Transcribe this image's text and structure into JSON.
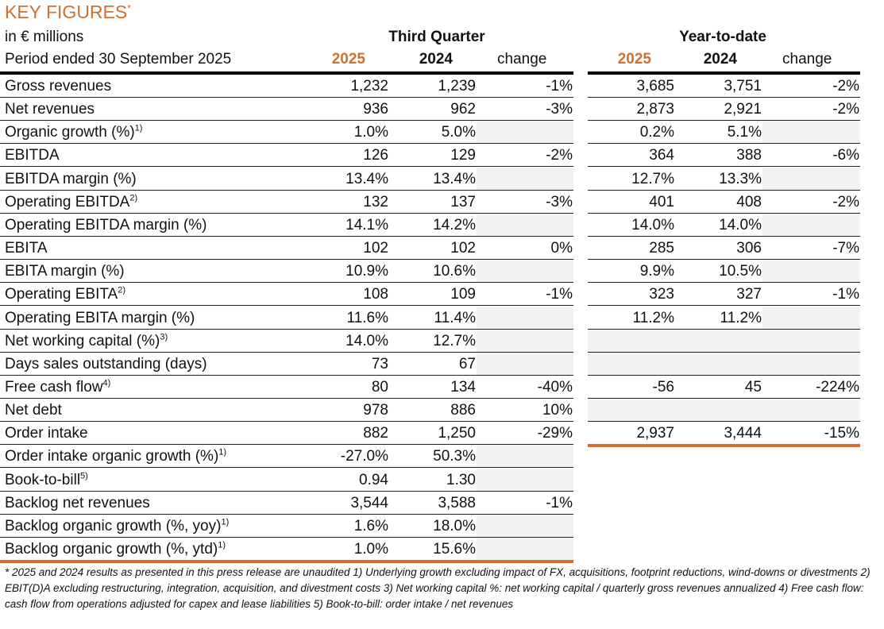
{
  "title": "KEY FIGURES",
  "title_sup": "*",
  "units": "in € millions",
  "period": "Period ended 30 September 2025",
  "third_quarter": {
    "heading": "Third Quarter",
    "col_2025": "2025",
    "col_2024": "2024",
    "col_change": "change"
  },
  "ytd": {
    "heading": "Year-to-date",
    "col_2025": "2025",
    "col_2024": "2024",
    "col_change": "change"
  },
  "colors": {
    "accent": "#d0702e",
    "shade": "#f2f2f2"
  },
  "rows": [
    {
      "label": "Gross revenues",
      "sup": "",
      "q": [
        "1,232",
        "1,239",
        "-1%"
      ],
      "y": [
        "3,685",
        "3,751",
        "-2%"
      ]
    },
    {
      "label": "Net revenues",
      "sup": "",
      "q": [
        "936",
        "962",
        "-3%"
      ],
      "y": [
        "2,873",
        "2,921",
        "-2%"
      ]
    },
    {
      "label": "Organic growth (%)",
      "sup": "1)",
      "q": [
        "1.0%",
        "5.0%",
        ""
      ],
      "y": [
        "0.2%",
        "5.1%",
        ""
      ]
    },
    {
      "label": "EBITDA",
      "sup": "",
      "q": [
        "126",
        "129",
        "-2%"
      ],
      "y": [
        "364",
        "388",
        "-6%"
      ]
    },
    {
      "label": "EBITDA margin (%)",
      "sup": "",
      "q": [
        "13.4%",
        "13.4%",
        ""
      ],
      "y": [
        "12.7%",
        "13.3%",
        ""
      ]
    },
    {
      "label": "Operating EBITDA",
      "sup": "2)",
      "q": [
        "132",
        "137",
        "-3%"
      ],
      "y": [
        "401",
        "408",
        "-2%"
      ]
    },
    {
      "label": "Operating EBITDA margin (%)",
      "sup": "",
      "q": [
        "14.1%",
        "14.2%",
        ""
      ],
      "y": [
        "14.0%",
        "14.0%",
        ""
      ]
    },
    {
      "label": "EBITA",
      "sup": "",
      "q": [
        "102",
        "102",
        "0%"
      ],
      "y": [
        "285",
        "306",
        "-7%"
      ]
    },
    {
      "label": "EBITA margin (%)",
      "sup": "",
      "q": [
        "10.9%",
        "10.6%",
        ""
      ],
      "y": [
        "9.9%",
        "10.5%",
        ""
      ]
    },
    {
      "label": "Operating EBITA",
      "sup": "2)",
      "q": [
        "108",
        "109",
        "-1%"
      ],
      "y": [
        "323",
        "327",
        "-1%"
      ]
    },
    {
      "label": "Operating EBITA margin (%)",
      "sup": "",
      "q": [
        "11.6%",
        "11.4%",
        ""
      ],
      "y": [
        "11.2%",
        "11.2%",
        ""
      ]
    },
    {
      "label": "Net working capital (%)",
      "sup": "3)",
      "q": [
        "14.0%",
        "12.7%",
        ""
      ],
      "y": [
        "",
        "",
        ""
      ]
    },
    {
      "label": "Days sales outstanding (days)",
      "sup": "",
      "q": [
        "73",
        "67",
        ""
      ],
      "y": [
        "",
        "",
        ""
      ]
    },
    {
      "label": "Free cash flow",
      "sup": "4)",
      "q": [
        "80",
        "134",
        "-40%"
      ],
      "y": [
        "-56",
        "45",
        "-224%"
      ]
    },
    {
      "label": "Net debt",
      "sup": "",
      "q": [
        "978",
        "886",
        "10%"
      ],
      "y": [
        "",
        "",
        ""
      ]
    },
    {
      "label": "Order intake",
      "sup": "",
      "q": [
        "882",
        "1,250",
        "-29%"
      ],
      "y": [
        "2,937",
        "3,444",
        "-15%"
      ]
    },
    {
      "label": "Order intake organic growth (%)",
      "sup": "1)",
      "q": [
        "-27.0%",
        "50.3%",
        ""
      ]
    },
    {
      "label": "Book-to-bill",
      "sup": "5)",
      "q": [
        "0.94",
        "1.30",
        ""
      ]
    },
    {
      "label": "Backlog net revenues",
      "sup": "",
      "q": [
        "3,544",
        "3,588",
        "-1%"
      ]
    },
    {
      "label": "Backlog organic growth (%, yoy)",
      "sup": "1)",
      "q": [
        "1.6%",
        "18.0%",
        ""
      ]
    },
    {
      "label": "Backlog organic growth (%, ytd)",
      "sup": "1)",
      "q": [
        "1.0%",
        "15.6%",
        ""
      ]
    }
  ],
  "footnote": "* 2025 and 2024 results as presented in this press release are unaudited 1) Underlying growth excluding impact of FX, acquisitions, footprint reductions, wind-downs or divestments  2) EBIT(D)A excluding restructuring, integration, acquisition, and divestment costs  3) Net working capital %: net working capital / quarterly gross revenues annualized 4) Free cash flow: cash flow from operations adjusted for capex and lease liabilities 5) Book-to-bill: order intake / net revenues"
}
